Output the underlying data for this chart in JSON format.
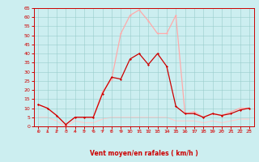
{
  "xlabel": "Vent moyen/en rafales ( km/h )",
  "hours": [
    0,
    1,
    2,
    3,
    4,
    5,
    6,
    7,
    8,
    9,
    10,
    11,
    12,
    13,
    14,
    15,
    16,
    17,
    18,
    19,
    20,
    21,
    22,
    23
  ],
  "wind_avg": [
    12,
    10,
    6,
    1,
    5,
    5,
    5,
    18,
    27,
    26,
    37,
    40,
    34,
    40,
    33,
    11,
    7,
    7,
    5,
    7,
    6,
    7,
    9,
    10
  ],
  "wind_gust": [
    12,
    10,
    6,
    1,
    5,
    5,
    5,
    19,
    26,
    51,
    61,
    64,
    58,
    51,
    51,
    61,
    7,
    8,
    5,
    7,
    6,
    8,
    10,
    10
  ],
  "wind_min": [
    5,
    5,
    3,
    0,
    3,
    2,
    2,
    4,
    5,
    5,
    5,
    5,
    5,
    5,
    5,
    3,
    3,
    3,
    2,
    3,
    2,
    3,
    4,
    4
  ],
  "wind_dir_angles": [
    90,
    90,
    225,
    225,
    90,
    225,
    315,
    45,
    45,
    45,
    45,
    45,
    45,
    45,
    90,
    135,
    90,
    45,
    225,
    45,
    225,
    225,
    270,
    270
  ],
  "color_avg": "#cc0000",
  "color_gust": "#ffaaaa",
  "color_min": "#ffcccc",
  "color_arrow": "#dd4444",
  "bg_color": "#cceef0",
  "grid_color": "#99cccc",
  "axis_color": "#cc0000",
  "ylim": [
    0,
    65
  ],
  "yticks": [
    0,
    5,
    10,
    15,
    20,
    25,
    30,
    35,
    40,
    45,
    50,
    55,
    60,
    65
  ],
  "xticks": [
    0,
    1,
    2,
    3,
    4,
    5,
    6,
    7,
    8,
    9,
    10,
    11,
    12,
    13,
    14,
    15,
    16,
    17,
    18,
    19,
    20,
    21,
    22,
    23
  ]
}
